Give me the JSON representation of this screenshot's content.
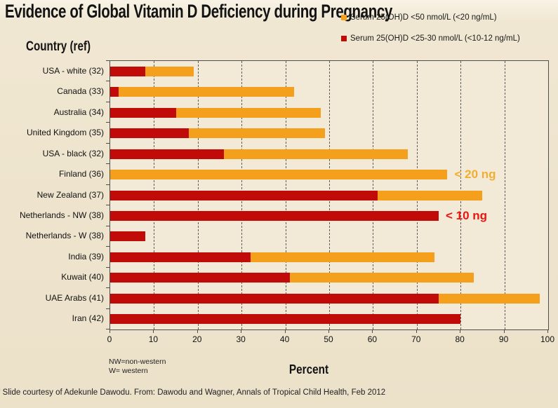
{
  "title": "Evidence of Global Vitamin D Deficiency during Pregnancy",
  "legend": [
    {
      "label": "Serum 25(OH)D <50 nmol/L (<20 ng/mL)",
      "color": "#F5A01D"
    },
    {
      "label": "Serum 25(OH)D <25-30 nmol/L (<10-12 ng/mL)",
      "color": "#C00B08"
    }
  ],
  "chart_data": {
    "type": "bar",
    "orientation": "horizontal",
    "stacked": true,
    "title": "Evidence of Global Vitamin D Deficiency during Pregnancy",
    "xlabel": "Percent",
    "ylabel": "Country (ref)",
    "xlim": [
      0,
      100
    ],
    "x_ticks": [
      0,
      10,
      20,
      30,
      40,
      50,
      60,
      70,
      80,
      90,
      100
    ],
    "grid": "vertical-dashed",
    "legend_position": "top-right",
    "categories": [
      "USA - white (32)",
      "Canada (33)",
      "Australia (34)",
      "United Kingdom (35)",
      "USA - black (32)",
      "Finland (36)",
      "New Zealand (37)",
      "Netherlands - NW (38)",
      "Netherlands - W (38)",
      "India (39)",
      "Kuwait (40)",
      "UAE Arabs (41)",
      "Iran (42)"
    ],
    "series": [
      {
        "name": "Serum 25(OH)D <25-30 nmol/L (<10-12 ng/mL)",
        "color": "#C00B08",
        "values": [
          8,
          2,
          15,
          18,
          26,
          0,
          61,
          75,
          8,
          32,
          41,
          75,
          80
        ]
      },
      {
        "name": "Serum 25(OH)D <50 nmol/L (<20 ng/mL) — total bar length",
        "color": "#F5A01D",
        "values": [
          19,
          42,
          48,
          49,
          68,
          77,
          85,
          75,
          8,
          74,
          83,
          98,
          80
        ]
      }
    ],
    "annotations": [
      {
        "text": "< 20 ng",
        "row": 5,
        "color": "#F1AE33"
      },
      {
        "text": "< 10 ng",
        "row": 7,
        "color": "#EA1510"
      }
    ]
  },
  "axis": {
    "y_title": "Country (ref)",
    "x_title": "Percent"
  },
  "notes": {
    "line1": "NW=non-western",
    "line2": "W= western"
  },
  "footnote": "* Slide courtesy of Adekunle Dawodu.  From:  Dawodu  and  Wagner,  Annals of Tropical  Child  Health,  Feb 2012",
  "colors": {
    "bar_orange": "#F5A01D",
    "bar_red": "#C00B08",
    "background": "#EFE5CF",
    "plot_background": "#F2E9D6",
    "grid": "#5C5C5C",
    "border": "#4D4D4D"
  }
}
